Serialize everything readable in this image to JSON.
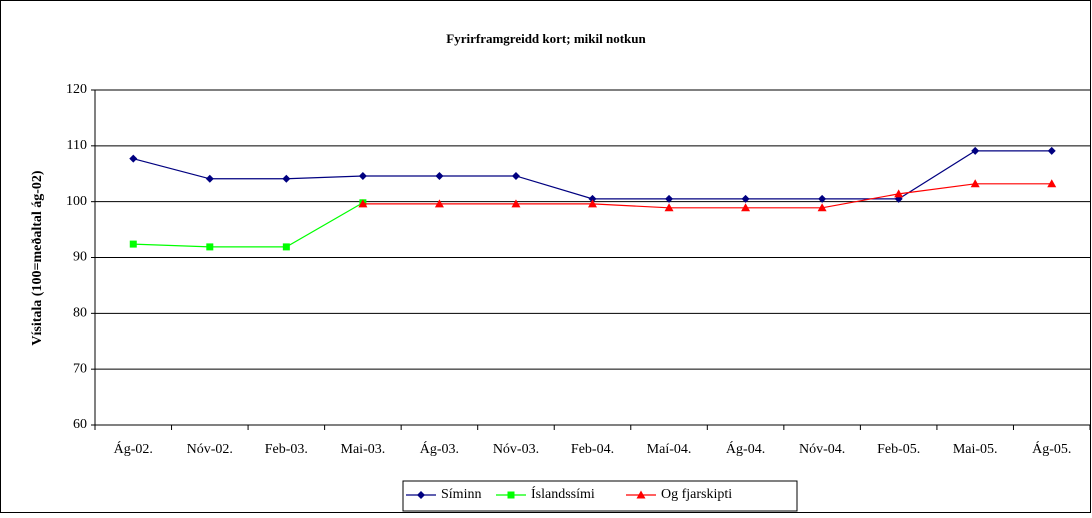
{
  "chart_data": {
    "type": "line",
    "title": "Fyrirframgreidd kort; mikil notkun",
    "y_label": "Vísitala (100=meðaltal ág-02)",
    "categories": [
      "Ág-02.",
      "Nóv-02.",
      "Feb-03.",
      "Mai-03.",
      "Ág-03.",
      "Nóv-03.",
      "Feb-04.",
      "Maí-04.",
      "Ág-04.",
      "Nóv-04.",
      "Feb-05.",
      "Mai-05.",
      "Ág-05."
    ],
    "series": [
      {
        "name": "Síminn",
        "color": "#000080",
        "marker": "diamond",
        "values": [
          107.7,
          104.1,
          104.1,
          104.6,
          104.6,
          104.6,
          100.5,
          100.5,
          100.5,
          100.5,
          100.5,
          109.1,
          109.1
        ]
      },
      {
        "name": "Íslandssími",
        "color": "#00ff00",
        "marker": "square",
        "values": [
          92.4,
          91.9,
          91.9,
          99.8,
          null,
          null,
          null,
          null,
          null,
          null,
          null,
          null,
          null
        ]
      },
      {
        "name": "Og fjarskipti",
        "color": "#ff0000",
        "marker": "triangle",
        "values": [
          null,
          null,
          null,
          99.6,
          99.6,
          99.6,
          99.6,
          98.9,
          98.9,
          98.9,
          101.4,
          103.2,
          103.2
        ]
      }
    ],
    "ylim": [
      60,
      120
    ],
    "yticks": [
      60,
      70,
      80,
      90,
      100,
      110,
      120
    ],
    "grid": true,
    "legend": "bottom"
  }
}
